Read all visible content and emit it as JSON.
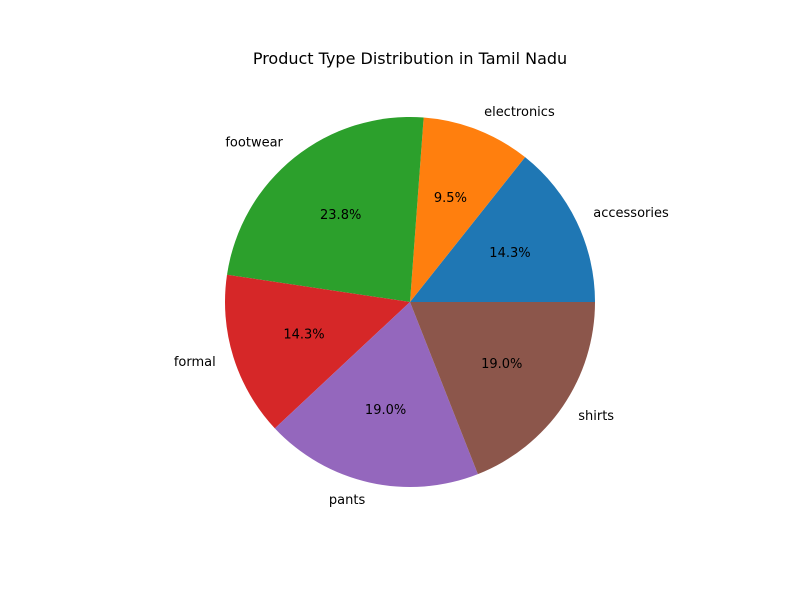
{
  "chart_data": {
    "type": "pie",
    "title": "Product Type Distribution in Tamil Nadu",
    "categories": [
      "accessories",
      "electronics",
      "footwear",
      "formal",
      "pants",
      "shirts"
    ],
    "values": [
      14.3,
      9.5,
      23.8,
      14.3,
      19.0,
      19.0
    ],
    "percent_labels": [
      "14.3%",
      "9.5%",
      "23.8%",
      "14.3%",
      "19.0%",
      "19.0%"
    ],
    "colors": [
      "#1f77b4",
      "#ff7f0e",
      "#2ca02c",
      "#d62728",
      "#9467bd",
      "#8c564b"
    ],
    "start_angle_deg": 0,
    "direction": "counterclockwise",
    "legend": "none"
  }
}
